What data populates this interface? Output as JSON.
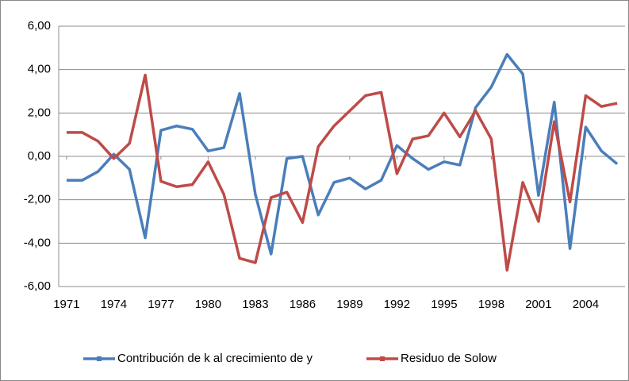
{
  "chart_data": {
    "type": "line",
    "x": [
      1971,
      1972,
      1973,
      1974,
      1975,
      1976,
      1977,
      1978,
      1979,
      1980,
      1981,
      1982,
      1983,
      1984,
      1985,
      1986,
      1987,
      1988,
      1989,
      1990,
      1991,
      1992,
      1993,
      1994,
      1995,
      1996,
      1997,
      1998,
      1999,
      2000,
      2001,
      2002,
      2003,
      2004,
      2005,
      2006
    ],
    "xlim": [
      1970.5,
      2006.5
    ],
    "xticks": [
      1971,
      1974,
      1977,
      1980,
      1983,
      1986,
      1989,
      1992,
      1995,
      1998,
      2001,
      2004
    ],
    "ylim": [
      -6,
      6
    ],
    "yticks": [
      {
        "value": -6,
        "label": "-6,00"
      },
      {
        "value": -4,
        "label": "-4,00"
      },
      {
        "value": -2,
        "label": "-2,00"
      },
      {
        "value": 0,
        "label": "0,00"
      },
      {
        "value": 2,
        "label": "2,00"
      },
      {
        "value": 4,
        "label": "4,00"
      },
      {
        "value": 6,
        "label": "6,00"
      }
    ],
    "grid": true,
    "legend": "bottom",
    "series": [
      {
        "name": "Contribución de k al crecimiento de y",
        "color": "#4a7ebb",
        "values": [
          -1.1,
          -1.1,
          -0.7,
          0.1,
          -0.6,
          -3.75,
          1.2,
          1.4,
          1.25,
          0.25,
          0.4,
          2.9,
          -1.75,
          -4.5,
          -0.1,
          0.0,
          -2.7,
          -1.2,
          -1.0,
          -1.5,
          -1.1,
          0.5,
          -0.1,
          -0.6,
          -0.25,
          -0.4,
          2.25,
          3.2,
          4.7,
          3.8,
          -1.8,
          2.5,
          -4.25,
          1.35,
          0.25,
          -0.35
        ]
      },
      {
        "name": "Residuo de Solow",
        "color": "#be4b48",
        "values": [
          1.1,
          1.1,
          0.7,
          -0.1,
          0.6,
          3.75,
          -1.15,
          -1.4,
          -1.3,
          -0.25,
          -1.75,
          -4.7,
          -4.9,
          -1.9,
          -1.65,
          -3.05,
          0.45,
          1.4,
          2.1,
          2.8,
          2.95,
          -0.8,
          0.8,
          0.95,
          2.0,
          0.9,
          2.1,
          0.8,
          -5.25,
          -1.2,
          -3.0,
          1.6,
          -2.1,
          2.8,
          2.3,
          2.45
        ]
      }
    ]
  }
}
